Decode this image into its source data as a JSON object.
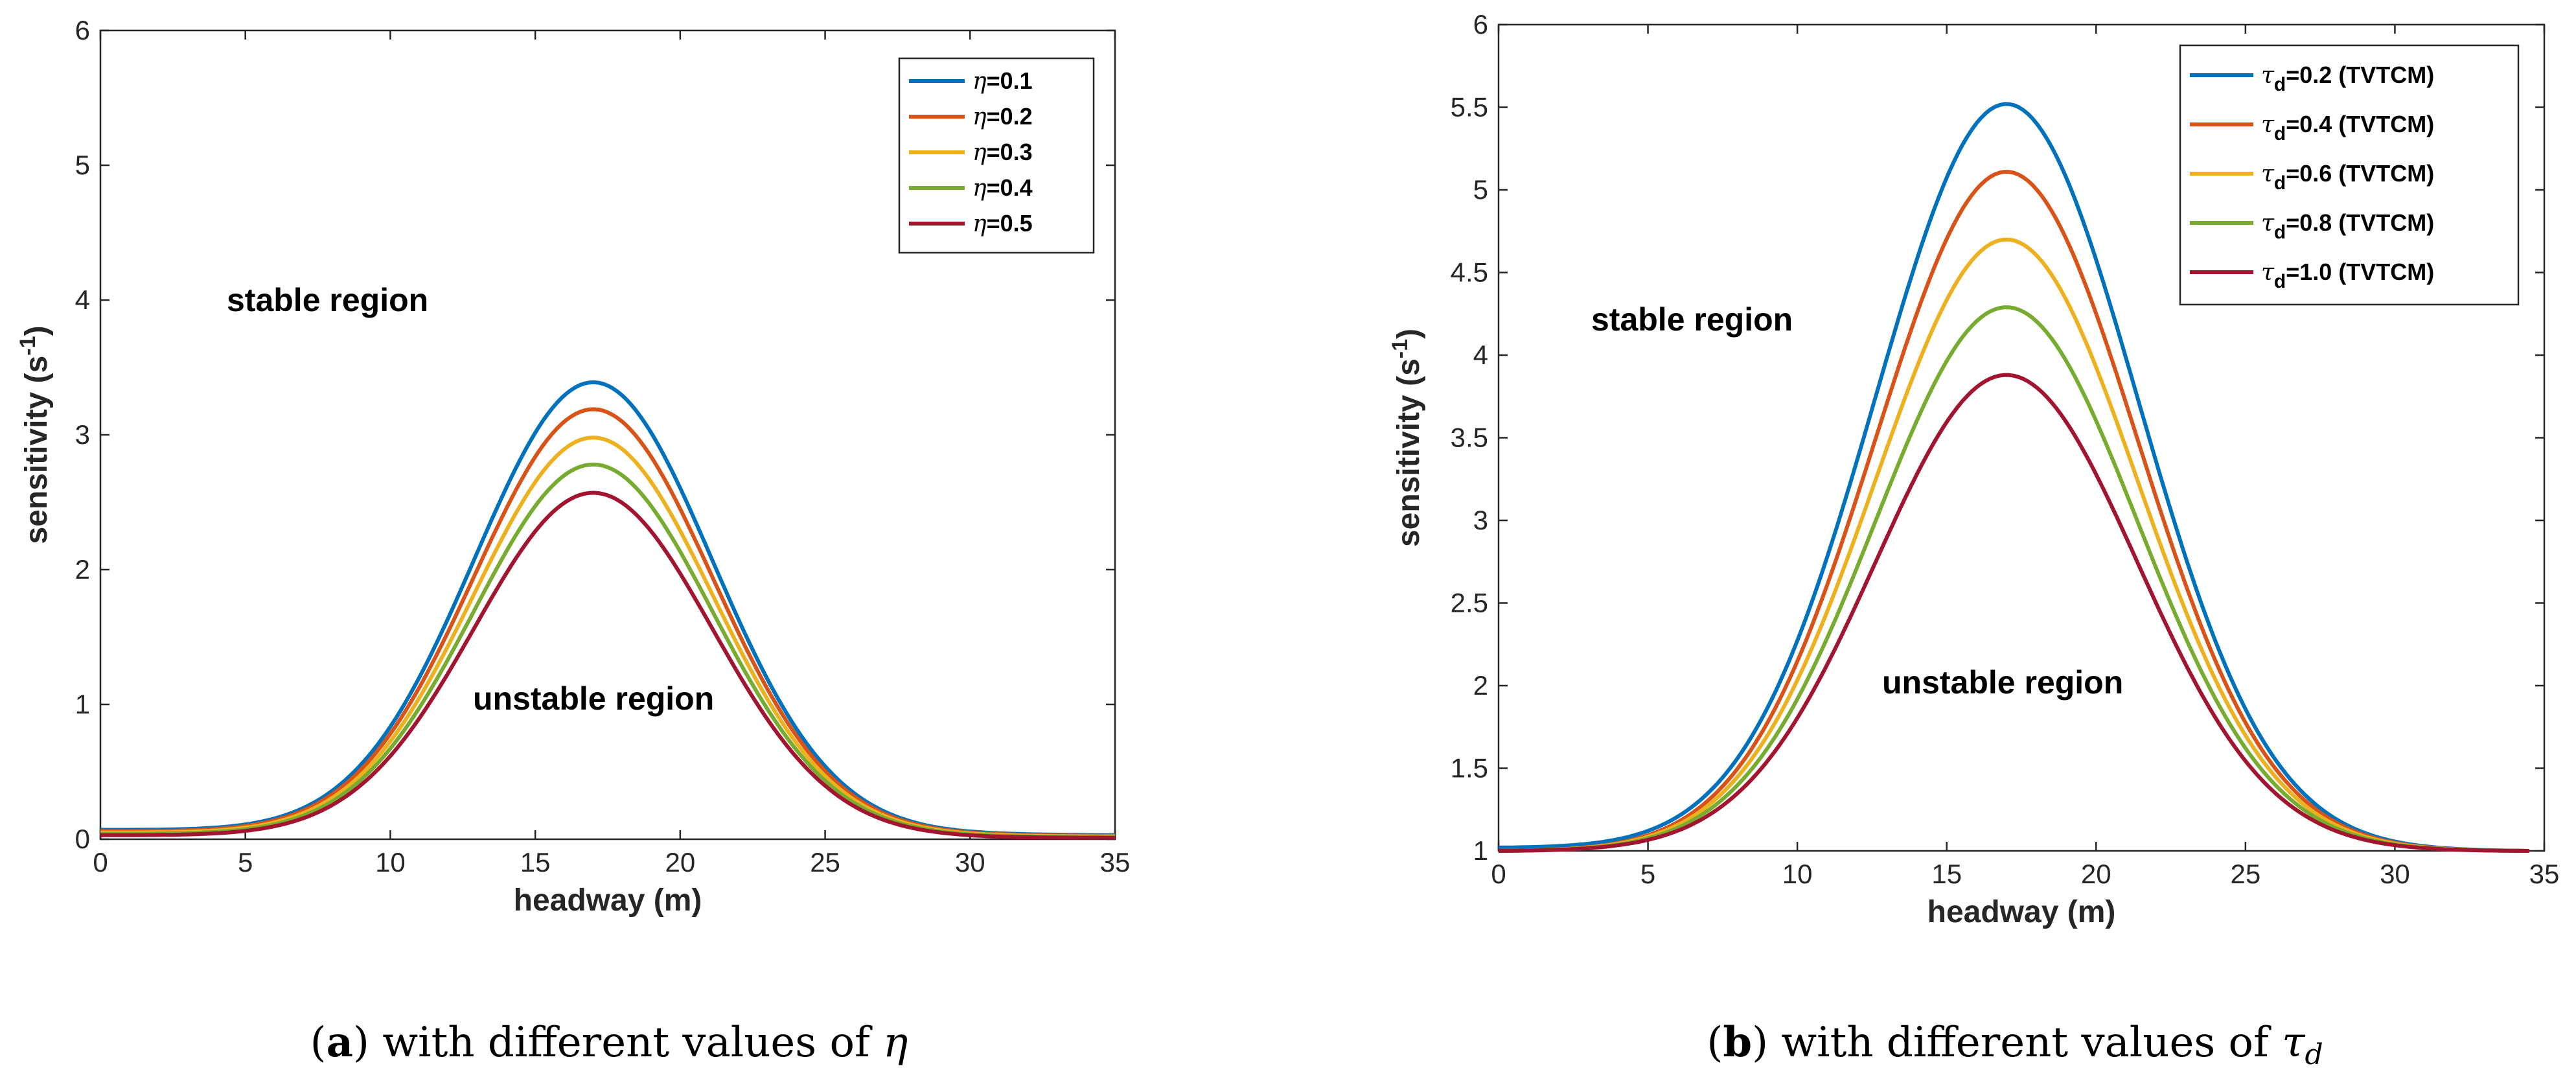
{
  "chart_data": [
    {
      "type": "line",
      "panel": "a",
      "xlabel": "headway (m)",
      "ylabel": "sensitivity (s",
      "ylabel_sup": "-1",
      "ylabel_end": ")",
      "xlim": [
        0,
        35
      ],
      "ylim": [
        0,
        6
      ],
      "xticks": [
        0,
        5,
        10,
        15,
        20,
        25,
        30,
        35
      ],
      "yticks": [
        0,
        1,
        2,
        3,
        4,
        5,
        6
      ],
      "ytick_labels": [
        "0",
        "1",
        "2",
        "3",
        "4",
        "5",
        "6"
      ],
      "legend_position": "top-right",
      "annotations": {
        "stable": "stable region",
        "unstable": "unstable region"
      },
      "curve": {
        "center": 17,
        "width": 5.8,
        "x_end": 35
      },
      "series": [
        {
          "symbol": "η",
          "label": "=0.1",
          "color": "#0072BD",
          "peak": 3.39,
          "start": 0.07,
          "end": 0.03
        },
        {
          "symbol": "η",
          "label": "=0.2",
          "color": "#D95319",
          "peak": 3.19,
          "start": 0.06,
          "end": 0.025
        },
        {
          "symbol": "η",
          "label": "=0.3",
          "color": "#EDB120",
          "peak": 2.98,
          "start": 0.05,
          "end": 0.02
        },
        {
          "symbol": "η",
          "label": "=0.4",
          "color": "#77AC30",
          "peak": 2.78,
          "start": 0.04,
          "end": 0.015
        },
        {
          "symbol": "η",
          "label": "=0.5",
          "color": "#A2142F",
          "peak": 2.57,
          "start": 0.03,
          "end": 0.01
        }
      ],
      "caption": {
        "letter": "a",
        "text": " with different values of ",
        "symbol": "η"
      }
    },
    {
      "type": "line",
      "panel": "b",
      "xlabel": "headway (m)",
      "ylabel": "sensitivity (s",
      "ylabel_sup": "-1",
      "ylabel_end": ")",
      "xlim": [
        0,
        35
      ],
      "ylim": [
        1,
        6
      ],
      "xticks": [
        0,
        5,
        10,
        15,
        20,
        25,
        30,
        35
      ],
      "yticks": [
        1,
        1.5,
        2,
        2.5,
        3,
        3.5,
        4,
        4.5,
        5,
        5.5,
        6
      ],
      "ytick_labels": [
        "1",
        "1.5",
        "2",
        "2.5",
        "3",
        "3.5",
        "4",
        "4.5",
        "5",
        "5.5",
        "6"
      ],
      "legend_position": "top-right",
      "annotations": {
        "stable": "stable region",
        "unstable": "unstable region"
      },
      "curve": {
        "center": 17,
        "width": 6.2,
        "x_end": 34.5
      },
      "series": [
        {
          "symbol": "τ",
          "sub": "d",
          "label": "=0.2 (TVTCM)",
          "color": "#0072BD",
          "peak": 5.52,
          "start": 1.02,
          "end": 1.0
        },
        {
          "symbol": "τ",
          "sub": "d",
          "label": "=0.4 (TVTCM)",
          "color": "#D95319",
          "peak": 5.11,
          "start": 1.0,
          "end": 1.0
        },
        {
          "symbol": "τ",
          "sub": "d",
          "label": "=0.6 (TVTCM)",
          "color": "#EDB120",
          "peak": 4.7,
          "start": 1.0,
          "end": 1.0
        },
        {
          "symbol": "τ",
          "sub": "d",
          "label": "=0.8 (TVTCM)",
          "color": "#77AC30",
          "peak": 4.29,
          "start": 1.0,
          "end": 1.0
        },
        {
          "symbol": "τ",
          "sub": "d",
          "label": "=1.0 (TVTCM)",
          "color": "#A2142F",
          "peak": 3.88,
          "start": 1.0,
          "end": 1.0
        }
      ],
      "caption": {
        "letter": "b",
        "text": " with different values of ",
        "symbol": "τ",
        "sub": "d"
      }
    }
  ]
}
